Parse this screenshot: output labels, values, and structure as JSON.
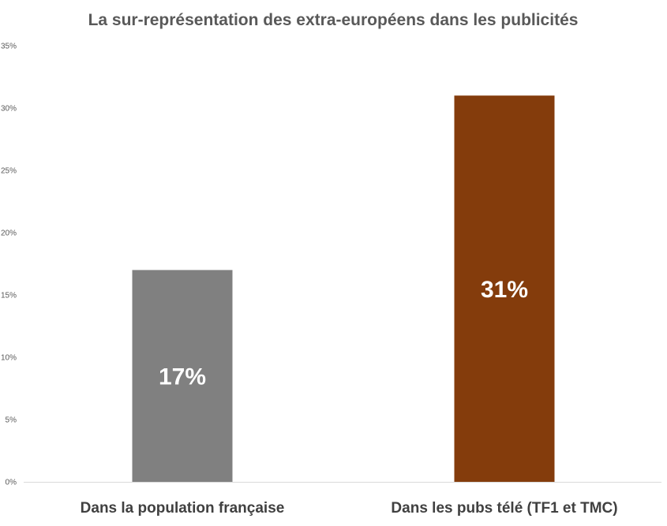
{
  "chart_data": {
    "type": "bar",
    "title": "La sur-représentation des extra-européens dans les publicités",
    "xlabel": "",
    "ylabel": "",
    "categories": [
      "Dans la population française",
      "Dans les pubs télé (TF1 et TMC)"
    ],
    "values": [
      17,
      31
    ],
    "data_labels": [
      "17%",
      "31%"
    ],
    "bar_colors": [
      "#808080",
      "#843c0c"
    ],
    "ylim": [
      0,
      35
    ],
    "yticks": [
      "0%",
      "5%",
      "10%",
      "15%",
      "20%",
      "25%",
      "30%",
      "35%"
    ],
    "grid": false,
    "legend": "none"
  }
}
